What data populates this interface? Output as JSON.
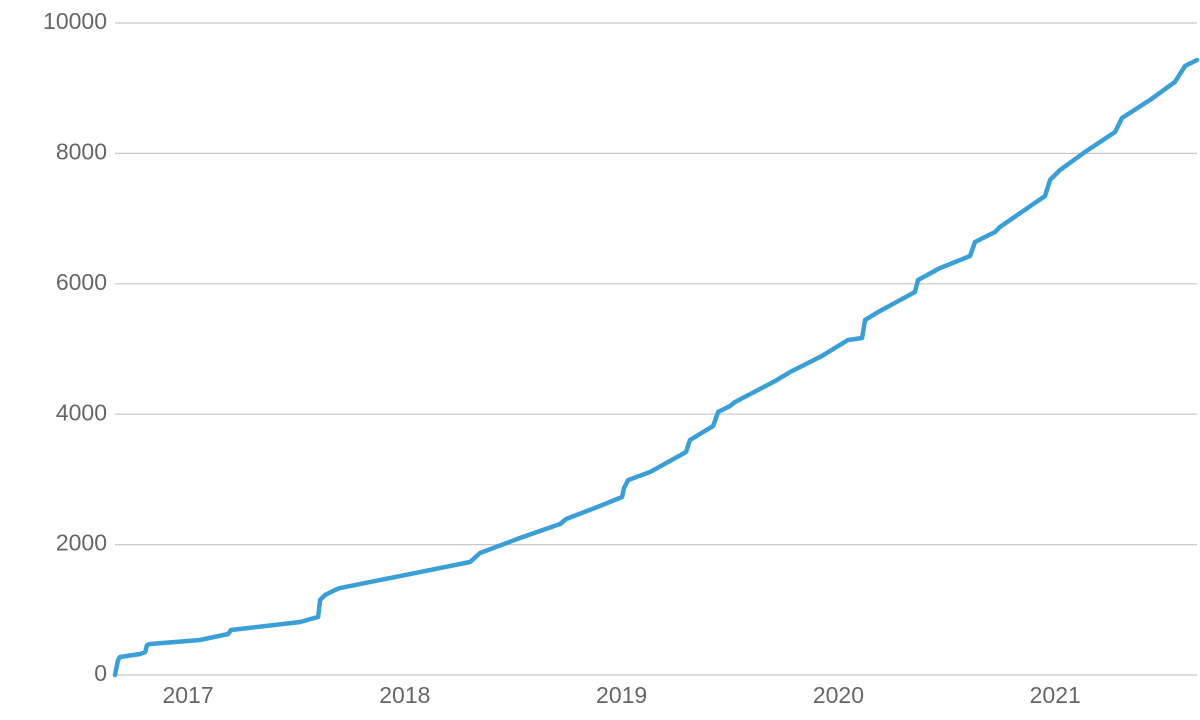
{
  "chart_data": {
    "type": "line",
    "x": [
      2016.663,
      2016.677,
      2016.686,
      2016.779,
      2016.802,
      2016.811,
      2016.825,
      2017.055,
      2017.185,
      2017.198,
      2017.517,
      2017.6,
      2017.609,
      2017.632,
      2017.678,
      2017.701,
      2017.978,
      2018.301,
      2018.347,
      2018.531,
      2018.716,
      2018.744,
      2018.9,
      2019.002,
      2019.011,
      2019.03,
      2019.131,
      2019.297,
      2019.315,
      2019.422,
      2019.445,
      2019.5,
      2019.523,
      2019.708,
      2019.777,
      2019.924,
      2020.044,
      2020.109,
      2020.123,
      2020.192,
      2020.353,
      2020.367,
      2020.469,
      2020.607,
      2020.63,
      2020.722,
      2020.745,
      2020.953,
      2020.976,
      2021.022,
      2021.137,
      2021.276,
      2021.308,
      2021.437,
      2021.552,
      2021.599,
      2021.654
    ],
    "series": [
      {
        "color": "#3a9fd6",
        "values": [
          0,
          230,
          276,
          322,
          350,
          460,
          475,
          537,
          629,
          690,
          813,
          890,
          1150,
          1227,
          1304,
          1334,
          1518,
          1733,
          1871,
          2101,
          2316,
          2393,
          2592,
          2730,
          2868,
          2990,
          3113,
          3420,
          3604,
          3819,
          4034,
          4126,
          4187,
          4509,
          4647,
          4893,
          5138,
          5169,
          5445,
          5583,
          5874,
          6058,
          6242,
          6426,
          6641,
          6794,
          6871,
          7347,
          7592,
          7745,
          8021,
          8328,
          8543,
          8819,
          9095,
          9340,
          9432
        ]
      }
    ],
    "xlim": [
      2016.663,
      2021.654
    ],
    "xticks": [
      2017,
      2018,
      2019,
      2020,
      2021
    ],
    "ylim": [
      0,
      10000
    ],
    "yticks": [
      0,
      2000,
      4000,
      6000,
      8000,
      10000
    ],
    "grid": true
  }
}
